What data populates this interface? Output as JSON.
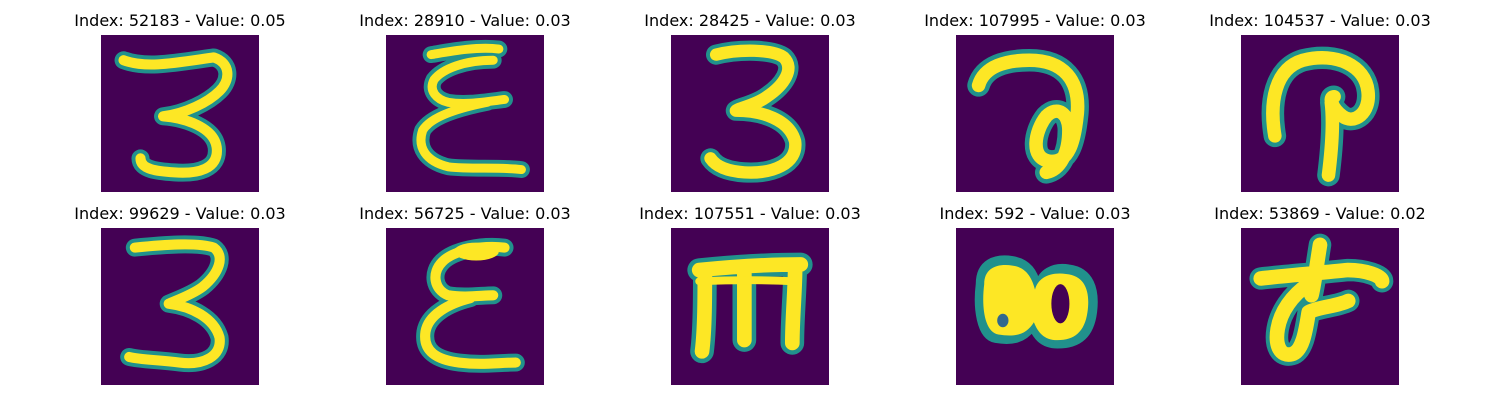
{
  "colormap": {
    "background": "#440154",
    "mid_low": "#31688e",
    "mid": "#21918c",
    "mid_high": "#5ec962",
    "stroke": "#fde725"
  },
  "panels": [
    {
      "title": "Index: 52183 - Value: 0.05",
      "glyph": "digit-three-icon"
    },
    {
      "title": "Index: 28910 - Value: 0.03",
      "glyph": "epsilon-glyph-icon"
    },
    {
      "title": "Index: 28425 - Value: 0.03",
      "glyph": "digit-three-icon"
    },
    {
      "title": "Index: 107995 - Value: 0.03",
      "glyph": "looped-a-glyph-icon"
    },
    {
      "title": "Index: 104537 - Value: 0.03",
      "glyph": "hook-glyph-icon"
    },
    {
      "title": "Index: 99629 - Value: 0.03",
      "glyph": "digit-three-icon"
    },
    {
      "title": "Index: 56725 - Value: 0.03",
      "glyph": "epsilon-glyph-icon"
    },
    {
      "title": "Index: 107551 - Value: 0.03",
      "glyph": "m-glyph-icon"
    },
    {
      "title": "Index: 592 - Value: 0.03",
      "glyph": "double-blob-glyph-icon"
    },
    {
      "title": "Index: 53869 - Value: 0.02",
      "glyph": "cross-glyph-icon"
    }
  ]
}
